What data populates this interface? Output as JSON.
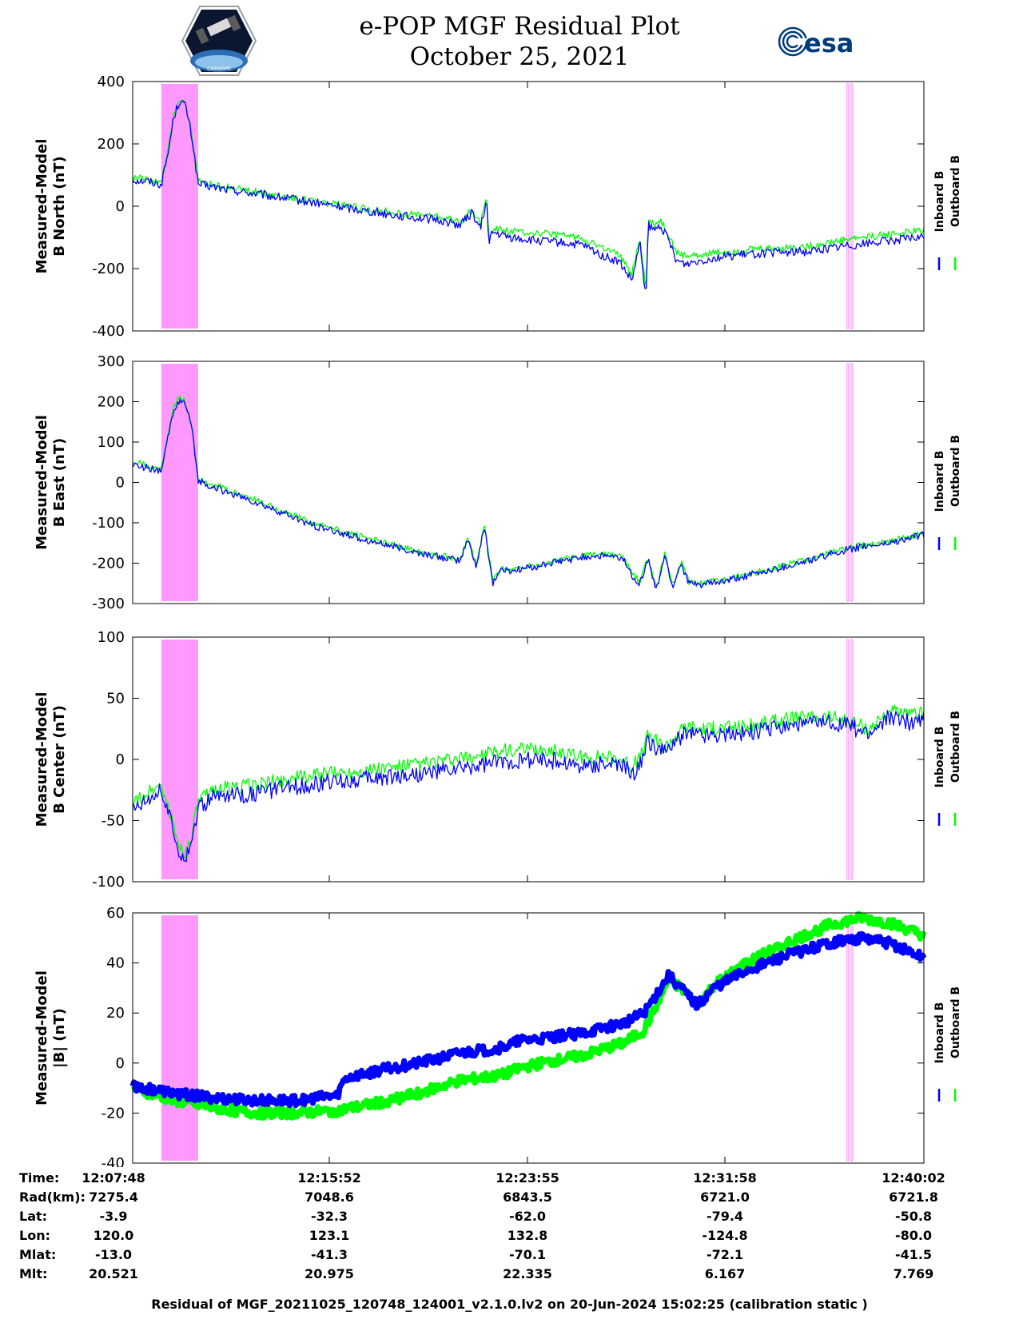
{
  "header": {
    "title_line1": "e-POP MGF Residual Plot",
    "title_line2": "October 25, 2021",
    "esa_logo_text": "esa",
    "mission_logo_text": "CASSIOPE"
  },
  "colors": {
    "inboard": "#0000ff",
    "outboard": "#00ff00",
    "highlight": "#ff99ff",
    "axis": "#000000"
  },
  "legend": {
    "inboard_label": "Inboard B",
    "outboard_label": "Outboard B"
  },
  "chart_data": [
    {
      "type": "line",
      "id": "north",
      "ylabel_line1": "Measured-Model",
      "ylabel_line2": "B North (nT)",
      "ylim": [
        -400,
        400
      ],
      "yticks": [
        400,
        200,
        0,
        -200,
        -400
      ],
      "xlim": [
        0,
        1934
      ],
      "x_tick_seconds": [
        0,
        484,
        967,
        1450,
        1934
      ],
      "highlight_spans": [
        [
          70,
          160
        ],
        [
          1746,
          1750
        ],
        [
          1756,
          1760
        ]
      ],
      "series": [
        {
          "name": "Inboard B",
          "x": [
            0,
            40,
            70,
            88,
            100,
            115,
            130,
            145,
            160,
            180,
            250,
            350,
            450,
            550,
            650,
            750,
            800,
            830,
            850,
            865,
            870,
            880,
            920,
            980,
            1030,
            1100,
            1150,
            1190,
            1220,
            1240,
            1255,
            1260,
            1275,
            1290,
            1310,
            1330,
            1350,
            1380,
            1450,
            1550,
            1650,
            1750,
            1850,
            1934
          ],
          "values": [
            85,
            80,
            70,
            180,
            285,
            340,
            320,
            220,
            70,
            65,
            50,
            30,
            10,
            -10,
            -30,
            -45,
            -60,
            -20,
            -75,
            20,
            -110,
            -85,
            -100,
            -110,
            -115,
            -125,
            -160,
            -180,
            -240,
            -120,
            -300,
            -60,
            -80,
            -60,
            -110,
            -175,
            -185,
            -175,
            -160,
            -150,
            -145,
            -125,
            -110,
            -100
          ],
          "noise": 14
        },
        {
          "name": "Outboard B",
          "x": [
            0,
            40,
            70,
            88,
            100,
            115,
            130,
            145,
            160,
            180,
            250,
            350,
            450,
            550,
            650,
            750,
            800,
            830,
            850,
            865,
            870,
            880,
            920,
            980,
            1030,
            1100,
            1150,
            1190,
            1220,
            1240,
            1255,
            1260,
            1275,
            1290,
            1310,
            1330,
            1350,
            1380,
            1450,
            1550,
            1650,
            1750,
            1850,
            1934
          ],
          "values": [
            92,
            86,
            76,
            188,
            292,
            348,
            328,
            228,
            78,
            72,
            56,
            36,
            16,
            -5,
            -22,
            -35,
            -50,
            -10,
            -60,
            35,
            -95,
            -70,
            -80,
            -85,
            -90,
            -100,
            -135,
            -160,
            -215,
            -100,
            -270,
            -45,
            -60,
            -45,
            -90,
            -150,
            -160,
            -155,
            -145,
            -135,
            -130,
            -105,
            -90,
            -78
          ],
          "noise": 12
        }
      ]
    },
    {
      "type": "line",
      "id": "east",
      "ylabel_line1": "Measured-Model",
      "ylabel_line2": "B East (nT)",
      "ylim": [
        -300,
        300
      ],
      "yticks": [
        300,
        200,
        100,
        0,
        -100,
        -200,
        -300
      ],
      "xlim": [
        0,
        1934
      ],
      "x_tick_seconds": [
        0,
        484,
        967,
        1450,
        1934
      ],
      "highlight_spans": [
        [
          70,
          160
        ],
        [
          1746,
          1750
        ],
        [
          1756,
          1760
        ]
      ],
      "series": [
        {
          "name": "Inboard B",
          "x": [
            0,
            40,
            70,
            88,
            100,
            115,
            130,
            145,
            160,
            180,
            300,
            450,
            600,
            700,
            800,
            820,
            840,
            860,
            880,
            900,
            920,
            1000,
            1100,
            1150,
            1200,
            1220,
            1240,
            1260,
            1280,
            1300,
            1320,
            1340,
            1360,
            1380,
            1450,
            1550,
            1650,
            1750,
            1850,
            1934
          ],
          "values": [
            45,
            35,
            25,
            120,
            180,
            205,
            190,
            130,
            5,
            -5,
            -50,
            -110,
            -150,
            -175,
            -195,
            -140,
            -210,
            -110,
            -250,
            -215,
            -220,
            -205,
            -185,
            -180,
            -190,
            -230,
            -250,
            -190,
            -270,
            -180,
            -260,
            -200,
            -250,
            -255,
            -245,
            -220,
            -195,
            -165,
            -150,
            -130
          ],
          "noise": 9
        },
        {
          "name": "Outboard B",
          "x": [
            0,
            40,
            70,
            88,
            100,
            115,
            130,
            145,
            160,
            180,
            300,
            450,
            600,
            700,
            800,
            820,
            840,
            860,
            880,
            900,
            920,
            1000,
            1100,
            1150,
            1200,
            1220,
            1240,
            1260,
            1280,
            1300,
            1320,
            1340,
            1360,
            1380,
            1450,
            1550,
            1650,
            1750,
            1850,
            1934
          ],
          "values": [
            52,
            42,
            32,
            128,
            188,
            213,
            198,
            138,
            11,
            1,
            -44,
            -104,
            -145,
            -171,
            -191,
            -136,
            -206,
            -106,
            -246,
            -211,
            -216,
            -201,
            -181,
            -176,
            -186,
            -226,
            -246,
            -186,
            -266,
            -176,
            -256,
            -196,
            -246,
            -251,
            -241,
            -216,
            -191,
            -161,
            -146,
            -126
          ],
          "noise": 8
        }
      ]
    },
    {
      "type": "line",
      "id": "center",
      "ylabel_line1": "Measured-Model",
      "ylabel_line2": "B Center (nT)",
      "ylim": [
        -100,
        100
      ],
      "yticks": [
        100,
        50,
        0,
        -50,
        -100
      ],
      "xlim": [
        0,
        1934
      ],
      "x_tick_seconds": [
        0,
        484,
        967,
        1450,
        1934
      ],
      "highlight_spans": [
        [
          70,
          160
        ],
        [
          1746,
          1750
        ],
        [
          1756,
          1760
        ]
      ],
      "series": [
        {
          "name": "Inboard B",
          "x": [
            0,
            40,
            70,
            88,
            100,
            115,
            130,
            145,
            160,
            200,
            300,
            400,
            500,
            600,
            700,
            800,
            900,
            1000,
            1050,
            1100,
            1150,
            1200,
            1220,
            1240,
            1260,
            1300,
            1350,
            1400,
            1500,
            1600,
            1700,
            1750,
            1800,
            1850,
            1900,
            1934
          ],
          "values": [
            -40,
            -30,
            -25,
            -45,
            -60,
            -75,
            -80,
            -65,
            -40,
            -30,
            -28,
            -22,
            -18,
            -15,
            -12,
            -8,
            -2,
            0,
            -2,
            -6,
            -3,
            -6,
            -12,
            -5,
            15,
            5,
            22,
            20,
            22,
            28,
            30,
            28,
            20,
            35,
            30,
            35
          ],
          "noise": 7
        },
        {
          "name": "Outboard B",
          "x": [
            0,
            40,
            70,
            88,
            100,
            115,
            130,
            145,
            160,
            200,
            300,
            400,
            500,
            600,
            700,
            800,
            900,
            1000,
            1050,
            1100,
            1150,
            1200,
            1220,
            1240,
            1260,
            1300,
            1350,
            1400,
            1500,
            1600,
            1700,
            1750,
            1800,
            1850,
            1900,
            1934
          ],
          "values": [
            -37,
            -26,
            -21,
            -41,
            -56,
            -71,
            -76,
            -61,
            -35,
            -24,
            -21,
            -15,
            -11,
            -8,
            -4,
            0,
            7,
            8,
            6,
            1,
            3,
            0,
            -6,
            1,
            20,
            10,
            27,
            25,
            27,
            33,
            35,
            32,
            25,
            40,
            35,
            40
          ],
          "noise": 6
        }
      ]
    },
    {
      "type": "line",
      "id": "magnitude",
      "ylabel_line1": "Measured-Model",
      "ylabel_line2": "|B| (nT)",
      "ylim": [
        -40,
        60
      ],
      "yticks": [
        60,
        40,
        20,
        0,
        -20,
        -40
      ],
      "xlim": [
        0,
        1934
      ],
      "x_tick_seconds": [
        0,
        484,
        967,
        1450,
        1934
      ],
      "highlight_spans": [
        [
          70,
          160
        ],
        [
          1746,
          1750
        ],
        [
          1756,
          1760
        ]
      ],
      "series": [
        {
          "name": "Inboard B",
          "x": [
            0,
            100,
            200,
            300,
            400,
            500,
            510,
            520,
            600,
            700,
            800,
            850,
            900,
            950,
            1000,
            1100,
            1200,
            1250,
            1310,
            1340,
            1380,
            1420,
            1500,
            1600,
            1700,
            1780,
            1850,
            1934
          ],
          "values": [
            -9,
            -12,
            -14,
            -15,
            -15,
            -13,
            -9,
            -6,
            -3,
            0,
            4,
            5,
            6,
            9,
            10,
            12,
            16,
            20,
            35,
            30,
            23,
            30,
            37,
            43,
            48,
            50,
            48,
            42
          ],
          "noise": 2
        },
        {
          "name": "Outboard B",
          "x": [
            0,
            100,
            200,
            300,
            400,
            500,
            600,
            700,
            800,
            850,
            900,
            950,
            1000,
            1100,
            1200,
            1250,
            1310,
            1340,
            1380,
            1420,
            1500,
            1600,
            1700,
            1780,
            1850,
            1934
          ],
          "values": [
            -10,
            -15,
            -18,
            -20,
            -20,
            -19,
            -16,
            -12,
            -7,
            -6,
            -5,
            -2,
            0,
            3,
            8,
            13,
            33,
            30,
            23,
            31,
            40,
            48,
            55,
            58,
            56,
            51
          ],
          "noise": 2
        }
      ]
    }
  ],
  "ephemeris": {
    "labels": [
      "Time:",
      "Rad(km):",
      "Lat:",
      "Lon:",
      "Mlat:",
      "Mlt:"
    ],
    "columns": [
      [
        "12:07:48",
        "7275.4",
        "-3.9",
        "120.0",
        "-13.0",
        "20.521"
      ],
      [
        "12:15:52",
        "7048.6",
        "-32.3",
        "123.1",
        "-41.3",
        "20.975"
      ],
      [
        "12:23:55",
        "6843.5",
        "-62.0",
        "132.8",
        "-70.1",
        "22.335"
      ],
      [
        "12:31:58",
        "6721.0",
        "-79.4",
        "-124.8",
        "-72.1",
        "6.167"
      ],
      [
        "12:40:02",
        "6721.8",
        "-50.8",
        "-80.0",
        "-41.5",
        "7.769"
      ]
    ]
  },
  "footer": "Residual of MGF_20211025_120748_124001_v2.1.0.lv2 on 20-Jun-2024 15:02:25 (calibration static )"
}
